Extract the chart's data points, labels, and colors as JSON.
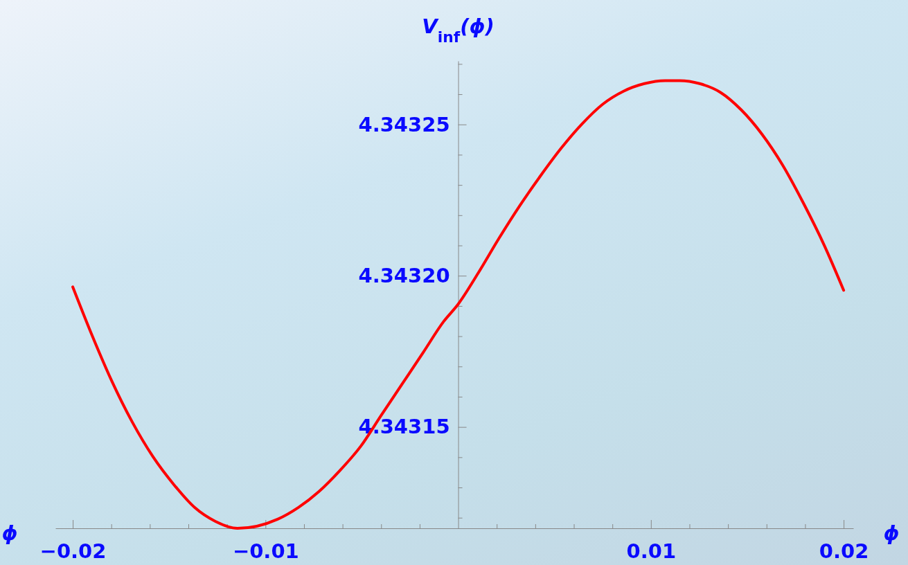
{
  "chart_data": {
    "type": "line",
    "xlabel": "ϕ",
    "ylabel": "V$_{inf}$(ϕ)",
    "annotations": [
      "ϕ"
    ],
    "xlim": [
      -0.0209,
      0.0205
    ],
    "ylim": [
      4.3431165,
      4.343271
    ],
    "xticks": [
      {
        "value": -0.02,
        "label": "−0.02"
      },
      {
        "value": -0.018,
        "label": null
      },
      {
        "value": -0.016,
        "label": null
      },
      {
        "value": -0.014,
        "label": null
      },
      {
        "value": -0.012,
        "label": null
      },
      {
        "value": -0.01,
        "label": "−0.01"
      },
      {
        "value": -0.008,
        "label": null
      },
      {
        "value": -0.006,
        "label": null
      },
      {
        "value": -0.004,
        "label": null
      },
      {
        "value": -0.002,
        "label": null
      },
      {
        "value": 0.002,
        "label": null
      },
      {
        "value": 0.004,
        "label": null
      },
      {
        "value": 0.006,
        "label": null
      },
      {
        "value": 0.008,
        "label": null
      },
      {
        "value": 0.01,
        "label": "0.01"
      },
      {
        "value": 0.012,
        "label": null
      },
      {
        "value": 0.014,
        "label": null
      },
      {
        "value": 0.016,
        "label": null
      },
      {
        "value": 0.018,
        "label": null
      },
      {
        "value": 0.02,
        "label": "0.02"
      }
    ],
    "yticks": [
      {
        "value": 4.34312,
        "label": null
      },
      {
        "value": 4.34313,
        "label": null
      },
      {
        "value": 4.34314,
        "label": null
      },
      {
        "value": 4.34315,
        "label": "4.34315"
      },
      {
        "value": 4.34316,
        "label": null
      },
      {
        "value": 4.34317,
        "label": null
      },
      {
        "value": 4.34318,
        "label": null
      },
      {
        "value": 4.34319,
        "label": null
      },
      {
        "value": 4.3432,
        "label": "4.34320"
      },
      {
        "value": 4.34321,
        "label": null
      },
      {
        "value": 4.34322,
        "label": null
      },
      {
        "value": 4.34323,
        "label": null
      },
      {
        "value": 4.34324,
        "label": null
      },
      {
        "value": 4.34325,
        "label": "4.34325"
      },
      {
        "value": 4.34326,
        "label": null
      },
      {
        "value": 4.34327,
        "label": null
      }
    ],
    "series": [
      {
        "color": "#ff0000",
        "x": [
          -0.02,
          -0.01907,
          -0.01799,
          -0.01691,
          -0.01583,
          -0.01476,
          -0.01368,
          -0.0126,
          -0.01145,
          -0.01045,
          -0.00937,
          -0.00829,
          -0.00722,
          -0.00614,
          -0.00506,
          -0.00399,
          -0.00291,
          -0.00183,
          -0.00075,
          0,
          0.00104,
          0.00212,
          0.0032,
          0.00427,
          0.00535,
          0.00643,
          0.0075,
          0.00858,
          0.00966,
          0.01074,
          0.01149,
          0.01253,
          0.01361,
          0.01469,
          0.01576,
          0.01684,
          0.01792,
          0.01899,
          0.02
        ],
        "values": [
          4.3431963,
          4.3431814,
          4.3431654,
          4.3431516,
          4.3431401,
          4.343131,
          4.3431234,
          4.3431188,
          4.3431165,
          4.3431172,
          4.3431195,
          4.3431234,
          4.3431287,
          4.3431356,
          4.3431436,
          4.3431539,
          4.3431642,
          4.3431745,
          4.3431849,
          4.3431906,
          4.3432009,
          4.3432124,
          4.3432232,
          4.343233,
          4.3432422,
          4.3432502,
          4.3432567,
          4.343261,
          4.3432635,
          4.3432645,
          4.3432645,
          4.3432635,
          4.3432606,
          4.3432548,
          4.3432468,
          4.3432365,
          4.3432239,
          4.3432101,
          4.3431952
        ]
      }
    ]
  }
}
